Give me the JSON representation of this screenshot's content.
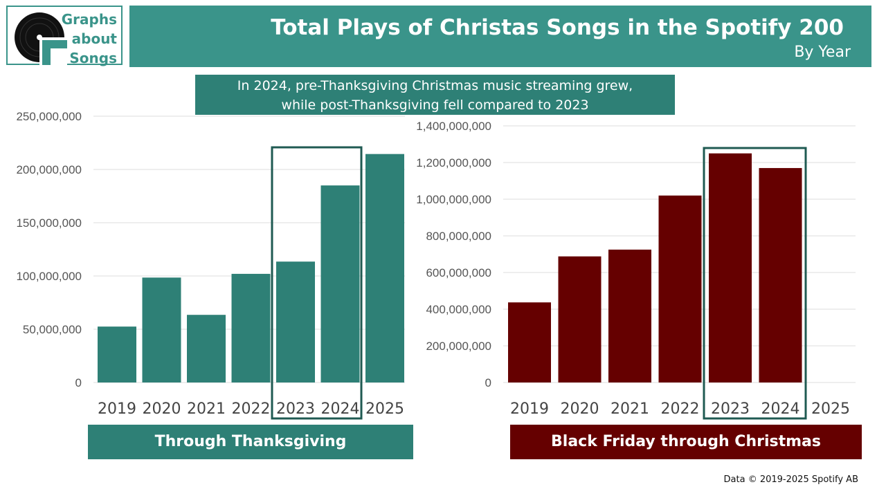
{
  "logo": {
    "lines": [
      "Graphs",
      "about",
      "Songs"
    ],
    "icon": "vinyl-record-icon"
  },
  "header": {
    "title": "Total Plays of Christas Songs in the Spotify 200",
    "subtitle": "By Year"
  },
  "annotation": {
    "line1": "In 2024, pre-Thanksgiving Christmas music streaming grew,",
    "line2": "while post-Thanksgiving fell compared to 2023"
  },
  "colors": {
    "teal": "#2e8076",
    "header_teal": "#3a948a",
    "maroon": "#650000",
    "highlight_border": "#1f5a52"
  },
  "chart_data": [
    {
      "type": "bar",
      "title": "Through Thanksgiving",
      "categories": [
        "2019",
        "2020",
        "2021",
        "2022",
        "2023",
        "2024",
        "2025"
      ],
      "values": [
        52500000,
        98500000,
        63500000,
        102000000,
        113500000,
        185000000,
        214500000
      ],
      "ylim": [
        0,
        250000000
      ],
      "yticks": [
        0,
        50000000,
        100000000,
        150000000,
        200000000,
        250000000
      ],
      "ytick_labels": [
        "0",
        "50,000,000",
        "100,000,000",
        "150,000,000",
        "200,000,000",
        "250,000,000"
      ],
      "highlight": [
        "2023",
        "2024"
      ],
      "color": "#2e8076"
    },
    {
      "type": "bar",
      "title": "Black Friday through Christmas",
      "categories": [
        "2019",
        "2020",
        "2021",
        "2022",
        "2023",
        "2024",
        "2025"
      ],
      "values": [
        437000000,
        688000000,
        725000000,
        1020000000,
        1250000000,
        1170000000,
        null
      ],
      "ylim": [
        0,
        1400000000
      ],
      "yticks": [
        0,
        200000000,
        400000000,
        600000000,
        800000000,
        1000000000,
        1200000000,
        1400000000
      ],
      "ytick_labels": [
        "0",
        "200,000,000",
        "400,000,000",
        "600,000,000",
        "800,000,000",
        "1,000,000,000",
        "1,200,000,000",
        "1,400,000,000"
      ],
      "highlight": [
        "2023",
        "2024"
      ],
      "color": "#650000"
    }
  ],
  "footer": {
    "text": "Data © 2019-2025 Spotify AB"
  }
}
